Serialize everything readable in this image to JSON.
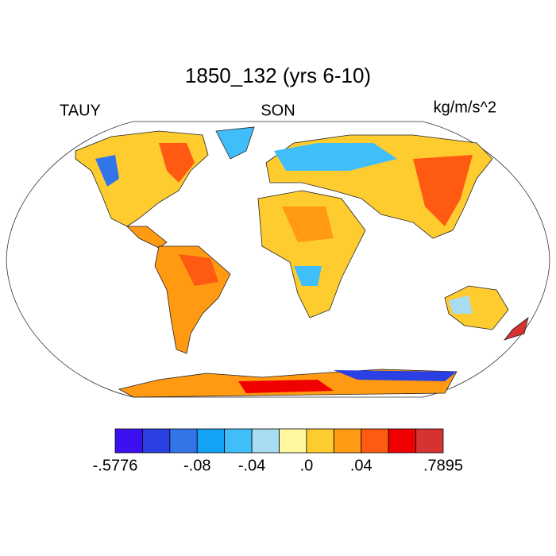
{
  "title": "1850_132 (yrs 6-10)",
  "left_label": "TAUY",
  "center_label": "SON",
  "right_label": "kg/m/s^2",
  "colorbar": {
    "colors": [
      "#3c10f0",
      "#2a40e2",
      "#3275e8",
      "#14a2f4",
      "#40befa",
      "#a8dcf0",
      "#fff8a0",
      "#ffcc30",
      "#ff9a12",
      "#ff5a12",
      "#f00000",
      "#d63232"
    ],
    "labels": [
      "-.5776",
      "-.08",
      "-.04",
      ".0",
      ".04",
      ".7895"
    ]
  }
}
